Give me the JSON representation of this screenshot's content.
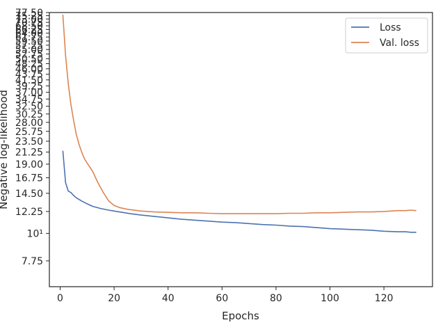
{
  "chart_data": {
    "type": "line",
    "xlabel": "Epochs",
    "ylabel": "Negative log-likelihood",
    "yscale": "log",
    "xlim": [
      -4,
      138
    ],
    "ylim": [
      6.1,
      77.5
    ],
    "xticks": [
      0,
      20,
      40,
      60,
      80,
      100,
      120
    ],
    "xtick_labels": [
      "0",
      "20",
      "40",
      "60",
      "80",
      "100",
      "120"
    ],
    "yticks": [
      7.75,
      10,
      12.25,
      14.5,
      16.75,
      19.0,
      21.25,
      23.5,
      25.75,
      28.0,
      30.25,
      32.5,
      34.75,
      37.0,
      39.25,
      41.5,
      43.75,
      46.0,
      48.25,
      50.5,
      52.75,
      55.0,
      57.25,
      59.5,
      61.75,
      64.0,
      66.25,
      68.5,
      70.75,
      73.0,
      75.25,
      77.5
    ],
    "ytick_labels": [
      "7.75",
      "10¹",
      "12.25",
      "14.50",
      "16.75",
      "19.00",
      "21.25",
      "23.50",
      "25.75",
      "28.00",
      "30.25",
      "32.50",
      "34.75",
      "37.00",
      "39.25",
      "41.50",
      "43.75",
      "46.00",
      "48.25",
      "50.50",
      "52.75",
      "55.00",
      "57.25",
      "59.50",
      "61.75",
      "64.00",
      "66.25",
      "68.50",
      "70.75",
      "73.00",
      "75.25",
      "77.50"
    ],
    "legend_position": "top-right",
    "grid": false,
    "series": [
      {
        "name": "Loss",
        "color": "#4c72b0",
        "x": [
          1,
          2,
          3,
          4,
          5,
          6,
          8,
          10,
          12,
          15,
          18,
          20,
          23,
          26,
          30,
          35,
          40,
          45,
          50,
          55,
          60,
          65,
          70,
          75,
          80,
          85,
          90,
          95,
          100,
          105,
          110,
          115,
          120,
          125,
          128,
          130,
          132
        ],
        "y": [
          21.5,
          16.0,
          14.8,
          14.6,
          14.2,
          13.9,
          13.5,
          13.15,
          12.85,
          12.6,
          12.4,
          12.3,
          12.15,
          12.0,
          11.85,
          11.7,
          11.55,
          11.4,
          11.3,
          11.2,
          11.1,
          11.05,
          10.95,
          10.85,
          10.8,
          10.7,
          10.65,
          10.55,
          10.45,
          10.4,
          10.35,
          10.3,
          10.2,
          10.15,
          10.15,
          10.1,
          10.1
        ]
      },
      {
        "name": "Val. loss",
        "color": "#dd8452",
        "x": [
          1,
          2,
          3,
          4,
          5,
          6,
          7,
          8,
          9,
          10,
          12,
          14,
          16,
          18,
          20,
          22,
          25,
          30,
          35,
          40,
          45,
          50,
          55,
          60,
          65,
          70,
          75,
          80,
          85,
          90,
          95,
          100,
          105,
          110,
          115,
          120,
          125,
          128,
          130,
          132
        ],
        "y": [
          76.0,
          52.0,
          40.0,
          33.0,
          28.5,
          25.0,
          22.8,
          21.2,
          20.0,
          19.2,
          17.8,
          16.0,
          14.6,
          13.5,
          12.95,
          12.7,
          12.5,
          12.3,
          12.2,
          12.15,
          12.1,
          12.1,
          12.05,
          12.0,
          12.0,
          12.0,
          12.0,
          12.0,
          12.05,
          12.05,
          12.1,
          12.1,
          12.15,
          12.2,
          12.2,
          12.25,
          12.35,
          12.35,
          12.4,
          12.35
        ]
      }
    ]
  }
}
